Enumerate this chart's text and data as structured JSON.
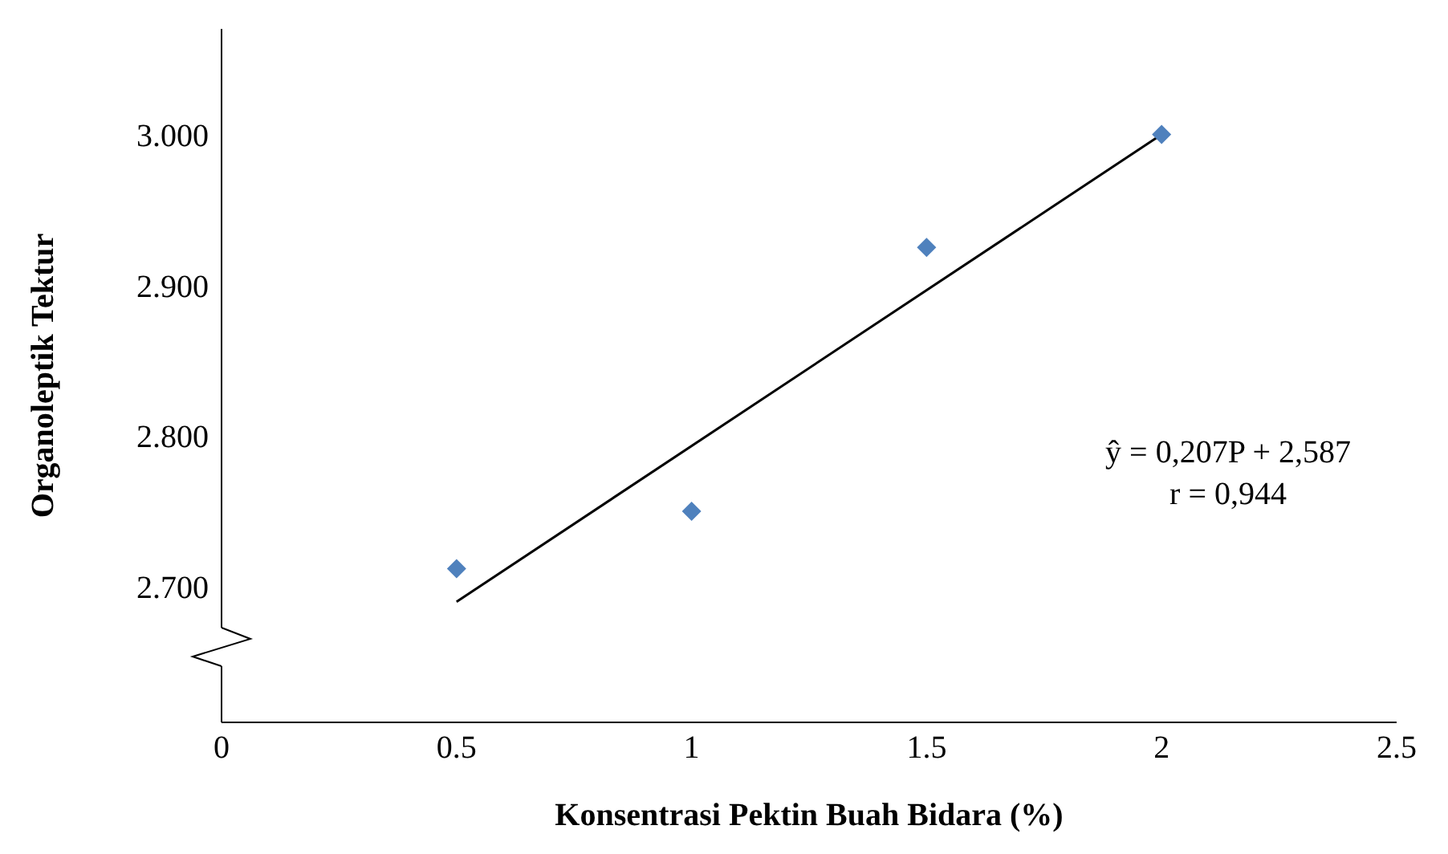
{
  "chart_data": {
    "type": "scatter",
    "xlabel": "Konsentrasi Pektin Buah Bidara (%)",
    "ylabel": "Organoleptik Tektur",
    "xlim": [
      0,
      2.5
    ],
    "xticks": [
      0,
      0.5,
      1,
      1.5,
      2,
      2.5
    ],
    "ylim": [
      2.61,
      3.07
    ],
    "yticks": [
      {
        "value": 2.7,
        "label": "2.700"
      },
      {
        "value": 2.8,
        "label": "2.800"
      },
      {
        "value": 2.9,
        "label": "2.900"
      },
      {
        "value": 3.0,
        "label": "3.000"
      }
    ],
    "grid": false,
    "series": [
      {
        "marker": "diamond",
        "color": "#4f81bd",
        "x": [
          0.5,
          1,
          1.5,
          2
        ],
        "values": [
          2.712,
          2.75,
          2.925,
          3.0
        ]
      },
      {
        "type": "line",
        "color": "#000000",
        "x": [
          0.5,
          2
        ],
        "values": [
          2.69,
          3.0
        ]
      }
    ],
    "annotations": [
      "ŷ = 0,207P + 2,587",
      "r = 0,944"
    ]
  }
}
